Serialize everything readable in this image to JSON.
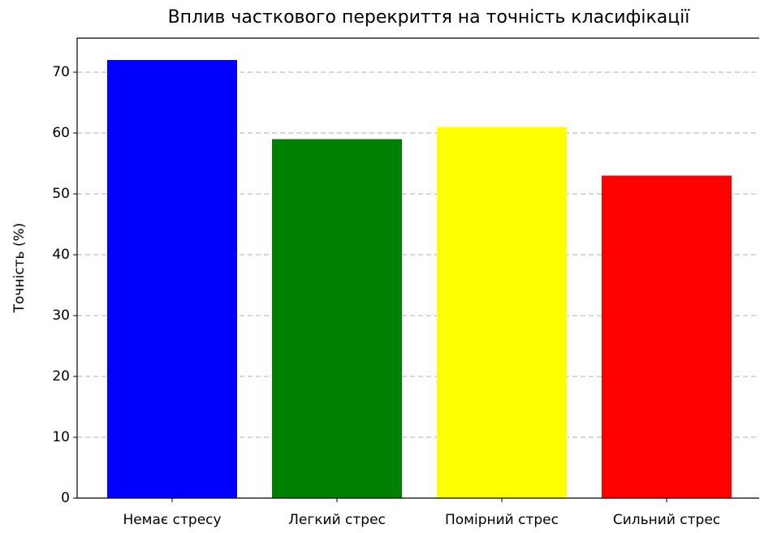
{
  "chart_data": {
    "type": "bar",
    "title": "Вплив часткового перекриття на точність класифікації",
    "y_label": "Точність (%)",
    "categories": [
      "Немає стресу",
      "Легкий стрес",
      "Помірний стрес",
      "Сильний стрес"
    ],
    "values": [
      72,
      59,
      61,
      53
    ],
    "colors": [
      "#0000ff",
      "#008000",
      "#ffff00",
      "#ff0000"
    ],
    "ylim": [
      0,
      75.6
    ],
    "yticks": [
      0,
      10,
      20,
      30,
      40,
      50,
      60,
      70
    ],
    "grid": true
  }
}
